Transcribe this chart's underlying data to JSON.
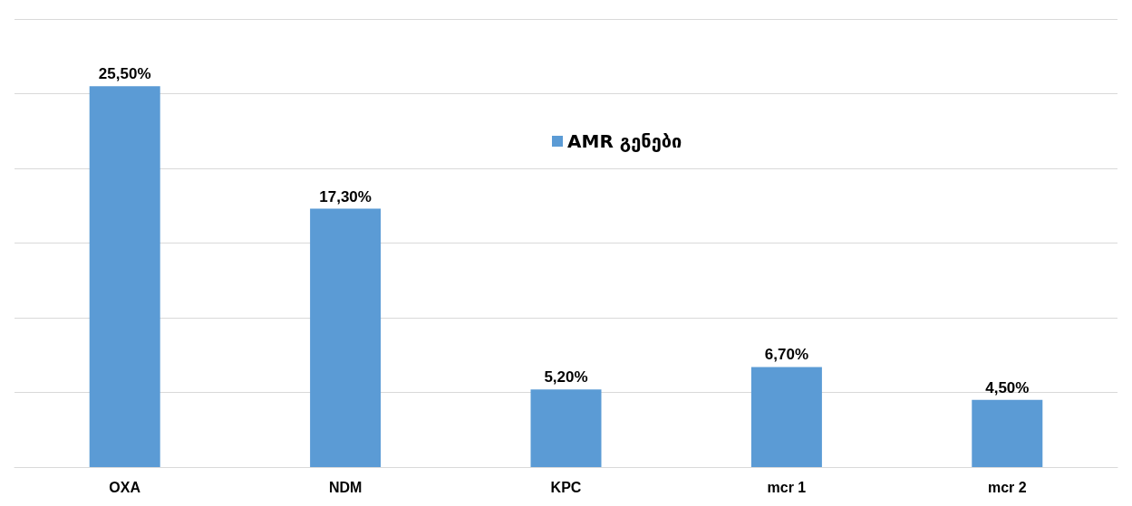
{
  "chart_data": {
    "type": "bar",
    "categories": [
      "OXA",
      "NDM",
      "KPC",
      "mcr 1",
      "mcr 2"
    ],
    "series": [
      {
        "name": "AMR გენები",
        "color": "#5b9bd5",
        "values": [
          25.5,
          17.3,
          5.2,
          6.7,
          4.5
        ],
        "value_labels": [
          "25,50%",
          "17,30%",
          "5,20%",
          "6,70%",
          "4,50%"
        ]
      }
    ],
    "ylim": [
      0,
      30
    ],
    "yticks": [
      {
        "value": 0,
        "label": null
      },
      {
        "value": 5,
        "label": null
      },
      {
        "value": 10,
        "label": null
      },
      {
        "value": 15,
        "label": null
      },
      {
        "value": 20,
        "label": null
      },
      {
        "value": 25,
        "label": null
      },
      {
        "value": 30,
        "label": null
      }
    ],
    "tick_labels": "x",
    "grid": true,
    "legend": "top"
  }
}
